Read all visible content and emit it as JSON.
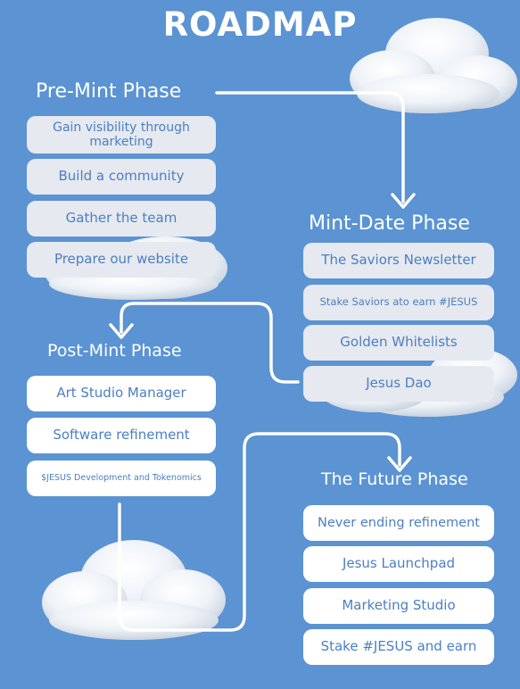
{
  "title": "ROADMAP",
  "phases": {
    "pre_mint": {
      "title": "Pre-Mint Phase",
      "items": [
        "Gain visibility through marketing",
        "Build a community",
        "Gather the team",
        "Prepare our website"
      ]
    },
    "mint_date": {
      "title": "Mint-Date Phase",
      "items": [
        "The Saviors Newsletter",
        "Stake Saviors ato earn #JESUS",
        "Golden Whitelists",
        "Jesus Dao"
      ]
    },
    "post_mint": {
      "title": "Post-Mint Phase",
      "items": [
        "Art Studio Manager",
        "Software refinement",
        "$JESUS Development and Tokenomics"
      ]
    },
    "future": {
      "title": "The Future Phase",
      "items": [
        "Never ending refinement",
        "Jesus Launchpad",
        "Marketing Studio",
        "Stake #JESUS and earn"
      ]
    }
  },
  "colors": {
    "background": "#5b93d3",
    "pill_grey": "#e6e9ef",
    "pill_white": "#ffffff",
    "pill_text": "#4b7fc2",
    "connector": "#ffffff"
  }
}
